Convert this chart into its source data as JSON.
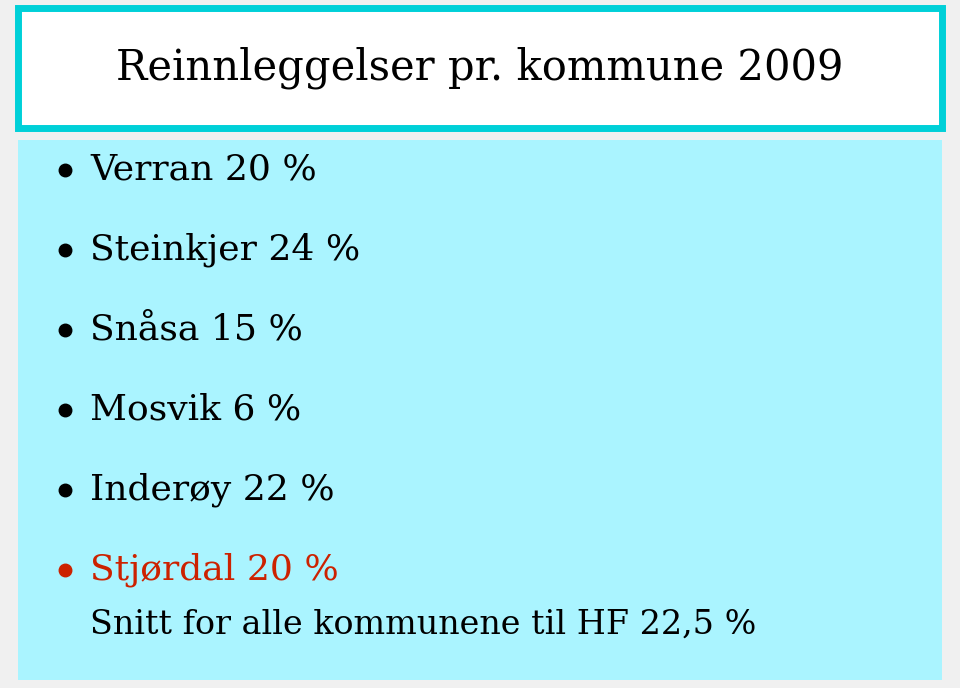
{
  "title": "Reinnleggelser pr. kommune 2009",
  "title_fontsize": 30,
  "title_color": "#000000",
  "title_box_bg": "#ffffff",
  "title_box_border": "#00d0d8",
  "content_box_bg": "#aaf4ff",
  "outer_bg": "#f0f0f0",
  "bullet_items": [
    {
      "text": "Verran 20 %",
      "color": "#000000"
    },
    {
      "text": "Steinkjer 24 %",
      "color": "#000000"
    },
    {
      "text": "Snåsa 15 %",
      "color": "#000000"
    },
    {
      "text": "Mosvik 6 %",
      "color": "#000000"
    },
    {
      "text": "Inderøy 22 %",
      "color": "#000000"
    },
    {
      "text": "Stjørdal 20 %",
      "color": "#cc2200"
    }
  ],
  "bullet_fontsize": 26,
  "footer_text": "Snitt for alle kommunene til HF 22,5 %",
  "footer_fontsize": 24,
  "footer_color": "#000000",
  "fig_width": 9.6,
  "fig_height": 6.88,
  "dpi": 100
}
